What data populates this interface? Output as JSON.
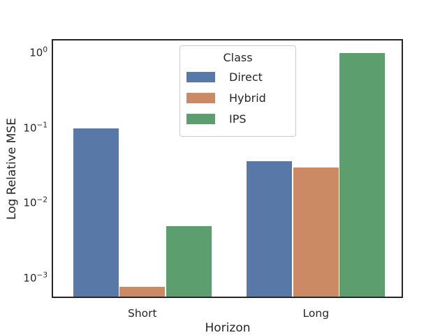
{
  "figure": {
    "background": "#ffffff",
    "text_color": "#262626",
    "spine_color": "#262626",
    "title": ""
  },
  "chart_data": {
    "type": "bar",
    "title": "",
    "xlabel": "Horizon",
    "ylabel": "Log Relative MSE",
    "yscale": "log",
    "grid": false,
    "categories": [
      "Short",
      "Long"
    ],
    "series": [
      {
        "name": "Direct",
        "color": "#5878a8",
        "values": [
          0.1,
          0.036
        ]
      },
      {
        "name": "Hybrid",
        "color": "#cb8a63",
        "values": [
          0.00077,
          0.03
        ]
      },
      {
        "name": "IPS",
        "color": "#5d9e6e",
        "values": [
          0.005,
          1.0
        ]
      }
    ],
    "ylim": [
      0.00055,
      1.53
    ],
    "yticks": [
      {
        "base": "10",
        "exponent": "0",
        "value": 1
      },
      {
        "base": "10",
        "exponent": "−1",
        "value": 0.1
      },
      {
        "base": "10",
        "exponent": "−2",
        "value": 0.01
      },
      {
        "base": "10",
        "exponent": "−3",
        "value": 0.001
      }
    ],
    "legend": {
      "title": "Class",
      "entries": [
        "Direct",
        "Hybrid",
        "IPS"
      ],
      "position": "upper center"
    }
  }
}
